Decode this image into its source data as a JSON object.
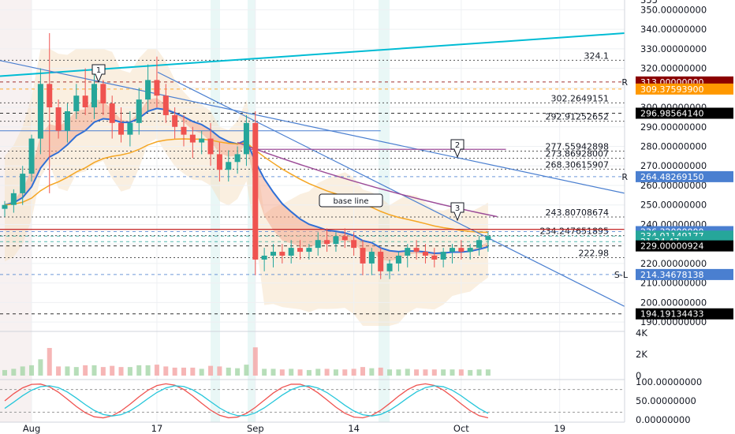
{
  "chart_data": {
    "type": "candlestick",
    "colors": {
      "up": "#26a69a",
      "down": "#ef5350",
      "trendline": "#4a7fd0",
      "resistance": "#00bcd4",
      "purple": "#9c4c98",
      "support_dash": "#4a7fd0",
      "red_dot": "#c62828"
    },
    "price_axis": {
      "ylim": [
        186,
        355
      ],
      "ticks": [
        {
          "v": 190,
          "label": "190.00000000"
        },
        {
          "v": 200,
          "label": "200.00000000"
        },
        {
          "v": 210,
          "label": "210.00000000"
        },
        {
          "v": 220,
          "label": "220.00000000"
        },
        {
          "v": 230,
          "label": "230.00000000"
        },
        {
          "v": 240,
          "label": "240.00000000"
        },
        {
          "v": 250,
          "label": "250.00000000"
        },
        {
          "v": 260,
          "label": "260.00000000"
        },
        {
          "v": 270,
          "label": "270.00000000"
        },
        {
          "v": 280,
          "label": "280.00000000"
        },
        {
          "v": 290,
          "label": "290.00000000"
        },
        {
          "v": 300,
          "label": "300.00000000"
        },
        {
          "v": 310,
          "label": "310.00000000"
        },
        {
          "v": 320,
          "label": "320.00000000"
        },
        {
          "v": 330,
          "label": "330.00000000"
        },
        {
          "v": 340,
          "label": "340.00000000"
        },
        {
          "v": 350,
          "label": "350.00000000"
        }
      ],
      "top_cut_label": "355",
      "price_tags": [
        {
          "v": 313,
          "label": "313.00000000",
          "color": "#8b0000",
          "marker": "R"
        },
        {
          "v": 309.375939,
          "label": "309.37593900",
          "color": "#ff9800"
        },
        {
          "v": 296.9856414,
          "label": "296.98564140",
          "color": "#000000"
        },
        {
          "v": 264.4826915,
          "label": "264.48269150",
          "color": "#4a7fd0",
          "marker": "R"
        },
        {
          "v": 236.32,
          "label": "236.32000000",
          "color": "#4a7fd0"
        },
        {
          "v": 234.01149177,
          "label": "234.01149177",
          "color": "#26a69a"
        },
        {
          "v": 231.2,
          "label": "21:24:47",
          "color": "#26a69a"
        },
        {
          "v": 229.00000924,
          "label": "229.00000924",
          "color": "#000000"
        },
        {
          "v": 214.34678138,
          "label": "214.34678138",
          "color": "#4a7fd0",
          "marker": "S-L"
        },
        {
          "v": 194.19134433,
          "label": "194.19134433",
          "color": "#000000"
        }
      ],
      "level_labels": [
        {
          "v": 324.1,
          "label": "324.1"
        },
        {
          "v": 302.2649151,
          "label": "302.2649151"
        },
        {
          "v": 292.91252652,
          "label": "292.91252652"
        },
        {
          "v": 277.55942898,
          "label": "277.55942898"
        },
        {
          "v": 273.86928007,
          "label": "273.86928007"
        },
        {
          "v": 268.30615907,
          "label": "268.30615907"
        },
        {
          "v": 243.80708674,
          "label": "243.80708674"
        },
        {
          "v": 234.247651895,
          "label": "234.247651895"
        },
        {
          "v": 222.98,
          "label": "222.98"
        }
      ]
    },
    "x_axis": {
      "labels": [
        {
          "i": 3,
          "label": "Aug"
        },
        {
          "i": 17,
          "label": "17"
        },
        {
          "i": 28,
          "label": "Sep"
        },
        {
          "i": 39,
          "label": "14"
        },
        {
          "i": 51,
          "label": "Oct"
        },
        {
          "i": 62,
          "label": "19"
        }
      ]
    },
    "candles": [
      [
        248,
        252,
        244,
        250
      ],
      [
        250,
        258,
        246,
        256
      ],
      [
        256,
        270,
        250,
        266
      ],
      [
        266,
        286,
        262,
        284
      ],
      [
        284,
        320,
        276,
        312
      ],
      [
        312,
        338,
        256,
        300
      ],
      [
        300,
        304,
        284,
        288
      ],
      [
        288,
        302,
        282,
        298
      ],
      [
        298,
        312,
        294,
        306
      ],
      [
        306,
        320,
        296,
        300
      ],
      [
        300,
        318,
        294,
        312
      ],
      [
        312,
        314,
        296,
        302
      ],
      [
        302,
        306,
        284,
        292
      ],
      [
        292,
        300,
        282,
        286
      ],
      [
        286,
        298,
        280,
        292
      ],
      [
        292,
        310,
        286,
        304
      ],
      [
        304,
        322,
        298,
        314
      ],
      [
        314,
        326,
        300,
        306
      ],
      [
        306,
        312,
        292,
        296
      ],
      [
        296,
        300,
        284,
        290
      ],
      [
        290,
        296,
        280,
        286
      ],
      [
        286,
        290,
        274,
        282
      ],
      [
        282,
        288,
        276,
        284
      ],
      [
        284,
        292,
        270,
        276
      ],
      [
        276,
        282,
        262,
        268
      ],
      [
        268,
        278,
        262,
        272
      ],
      [
        272,
        280,
        266,
        276
      ],
      [
        276,
        296,
        270,
        292
      ],
      [
        292,
        298,
        214,
        222
      ],
      [
        222,
        228,
        216,
        224
      ],
      [
        224,
        230,
        218,
        226
      ],
      [
        226,
        230,
        220,
        224
      ],
      [
        224,
        232,
        220,
        228
      ],
      [
        228,
        232,
        222,
        226
      ],
      [
        226,
        230,
        222,
        228
      ],
      [
        228,
        236,
        224,
        232
      ],
      [
        232,
        238,
        226,
        230
      ],
      [
        230,
        236,
        226,
        234
      ],
      [
        234,
        238,
        228,
        232
      ],
      [
        232,
        236,
        224,
        228
      ],
      [
        228,
        232,
        214,
        220
      ],
      [
        220,
        228,
        214,
        226
      ],
      [
        226,
        228,
        212,
        216
      ],
      [
        216,
        222,
        212,
        220
      ],
      [
        220,
        226,
        216,
        224
      ],
      [
        224,
        230,
        218,
        228
      ],
      [
        228,
        232,
        222,
        226
      ],
      [
        226,
        230,
        220,
        224
      ],
      [
        224,
        228,
        218,
        222
      ],
      [
        222,
        228,
        218,
        226
      ],
      [
        226,
        230,
        220,
        228
      ],
      [
        228,
        232,
        222,
        226
      ],
      [
        226,
        230,
        222,
        228
      ],
      [
        228,
        234,
        224,
        232
      ],
      [
        232,
        236,
        226,
        234
      ]
    ],
    "patterns": [
      {
        "label": "base line"
      },
      {
        "label": "1"
      },
      {
        "label": "2"
      },
      {
        "label": "3"
      }
    ],
    "volume_axis": {
      "ticks": [
        {
          "v": 0,
          "label": "0"
        },
        {
          "v": 2000,
          "label": "2K"
        },
        {
          "v": 4000,
          "label": "4K"
        }
      ]
    },
    "oscillator_axis": {
      "ticks": [
        {
          "v": 0,
          "label": "0.00000000"
        },
        {
          "v": 50,
          "label": "50.00000000"
        },
        {
          "v": 100,
          "label": "100.00000000"
        }
      ]
    }
  }
}
